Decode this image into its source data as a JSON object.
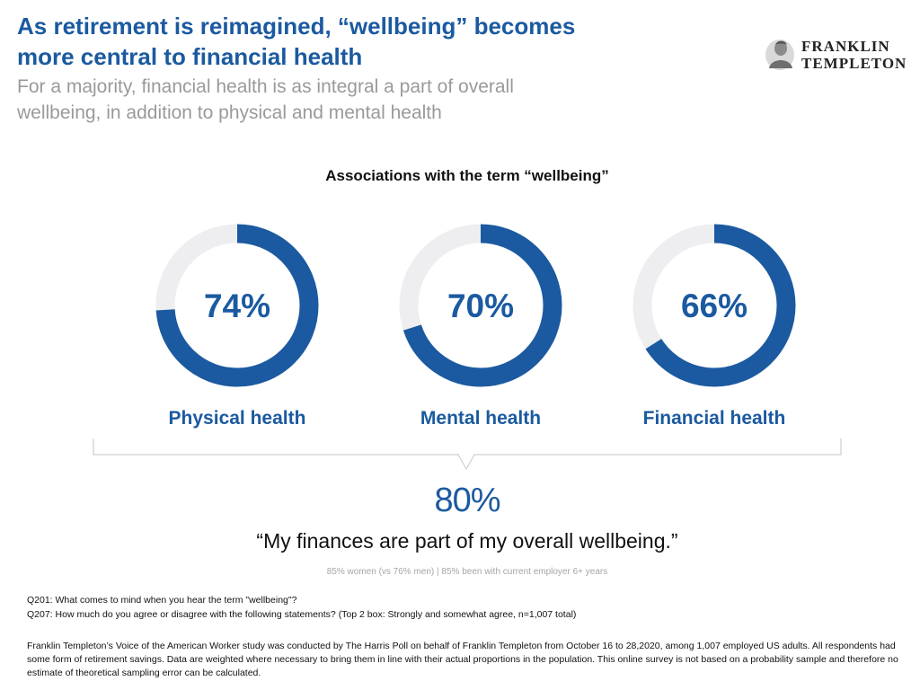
{
  "header": {
    "title_line1": "As retirement is reimagined, “wellbeing” becomes",
    "title_line2": "more central to financial health",
    "subtitle_line1": "For a majority, financial health is as integral a part of overall",
    "subtitle_line2": "wellbeing, in addition to physical and mental health"
  },
  "logo": {
    "line1": "FRANKLIN",
    "line2": "TEMPLETON"
  },
  "colors": {
    "accent": "#1b5aa0",
    "track": "#eeeef0",
    "muted": "#9a9a9a"
  },
  "chart_data": {
    "type": "donut",
    "title": "Associations with the term “wellbeing”",
    "categories": [
      "Physical health",
      "Mental health",
      "Financial health"
    ],
    "values": [
      74,
      70,
      66
    ],
    "value_labels": [
      "74%",
      "70%",
      "66%"
    ],
    "unit": "%",
    "max": 100
  },
  "stat": {
    "value": "80%",
    "quote": "“My finances are part of my overall wellbeing.”",
    "note": "85% women (vs 76% men) | 85% been with current employer 6+ years"
  },
  "footnotes": {
    "q201": "Q201: What comes to mind when you hear the term \"wellbeing\"?",
    "q207": "Q207: How much do you agree or disagree with the following statements? (Top 2 box: Strongly and somewhat agree, n=1,007 total)",
    "methodology": "Franklin Templeton’s Voice of the American Worker study was conducted by The Harris Poll on behalf of Franklin Templeton from October 16 to 28,2020, among 1,007 employed US adults. All respondents had some form of retirement savings. Data are weighted where necessary to bring them in line with their actual proportions in the population. This online survey is not based on a probability sample and therefore no estimate of theoretical sampling error can be calculated."
  }
}
